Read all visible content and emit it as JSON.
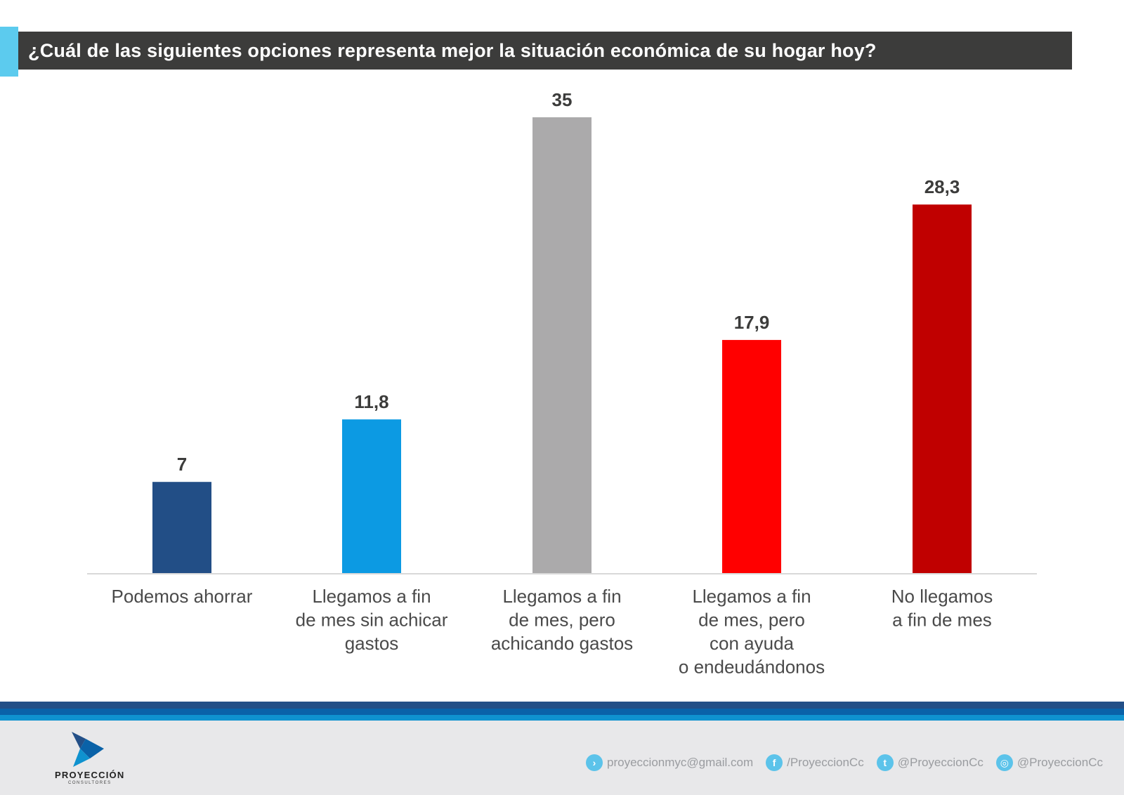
{
  "header": {
    "title": "¿Cuál de las siguientes opciones representa mejor la situación económica de su hogar hoy?",
    "accent_color": "#5ccbee",
    "bar_color": "#3c3c3b"
  },
  "chart_data": {
    "type": "bar",
    "title": "¿Cuál de las siguientes opciones representa mejor la situación económica de su hogar hoy?",
    "xlabel": "",
    "ylabel": "",
    "ylim": [
      0,
      35
    ],
    "grid": false,
    "legend": "none",
    "categories": [
      "Podemos ahorrar",
      "Llegamos a fin de mes sin achicar gastos",
      "Llegamos a fin de mes, pero achicando gastos",
      "Llegamos a fin de mes, pero con ayuda o endeudándonos",
      "No llegamos a fin de mes"
    ],
    "category_lines": [
      [
        "Podemos ahorrar"
      ],
      [
        "Llegamos a fin",
        "de mes sin achicar",
        "gastos"
      ],
      [
        "Llegamos a fin",
        "de mes, pero",
        "achicando gastos"
      ],
      [
        "Llegamos a fin",
        "de mes, pero",
        "con ayuda",
        "o endeudándonos"
      ],
      [
        "No llegamos",
        "a fin de mes"
      ]
    ],
    "values": [
      7,
      11.8,
      35,
      17.9,
      28.3
    ],
    "value_labels": [
      "7",
      "11,8",
      "35",
      "17,9",
      "28,3"
    ],
    "colors": [
      "#224e86",
      "#0c9ae3",
      "#abaaab",
      "#ff0000",
      "#c00000"
    ]
  },
  "footer": {
    "logo": {
      "brand": "PROYECCIÓN",
      "sub": "CONSULTORES"
    },
    "contacts": [
      {
        "icon": "arrow-right-icon",
        "glyph": "›",
        "text": "proyeccionmyc@gmail.com"
      },
      {
        "icon": "facebook-icon",
        "glyph": "f",
        "text": "/ProyeccionCc"
      },
      {
        "icon": "twitter-icon",
        "glyph": "t",
        "text": "@ProyeccionCc"
      },
      {
        "icon": "instagram-icon",
        "glyph": "◎",
        "text": "@ProyeccionCc"
      }
    ]
  }
}
